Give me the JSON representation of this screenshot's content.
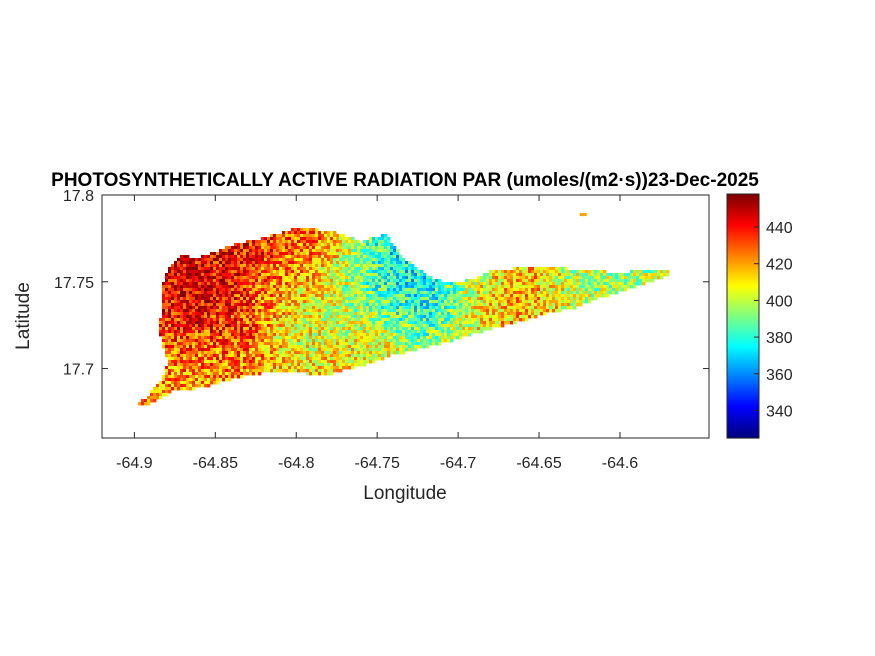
{
  "chart_data": {
    "type": "heatmap",
    "title": "PHOTOSYNTHETICALLY ACTIVE RADIATION PAR (umoles/(m2·s))23-Dec-2025",
    "xlabel": "Longitude",
    "ylabel": "Latitude",
    "xlim": [
      -64.92,
      -64.545
    ],
    "ylim": [
      17.66,
      17.8
    ],
    "xticks": [
      -64.9,
      -64.85,
      -64.8,
      -64.75,
      -64.7,
      -64.65,
      -64.6
    ],
    "xtick_labels": [
      "-64.9",
      "-64.85",
      "-64.8",
      "-64.75",
      "-64.7",
      "-64.65",
      "-64.6"
    ],
    "yticks": [
      17.7,
      17.75,
      17.8
    ],
    "ytick_labels": [
      "17.7",
      "17.75",
      "17.8"
    ],
    "colorbar": {
      "colormap": "jet",
      "clim": [
        325,
        458
      ],
      "ticks": [
        340,
        360,
        380,
        400,
        420,
        440
      ],
      "tick_labels": [
        "340",
        "360",
        "380",
        "400",
        "420",
        "440"
      ]
    },
    "grid": false,
    "island_outline": [
      [
        -64.9,
        17.679
      ],
      [
        -64.893,
        17.683
      ],
      [
        -64.884,
        17.693
      ],
      [
        -64.879,
        17.703
      ],
      [
        -64.882,
        17.712
      ],
      [
        -64.885,
        17.722
      ],
      [
        -64.883,
        17.735
      ],
      [
        -64.882,
        17.75
      ],
      [
        -64.879,
        17.758
      ],
      [
        -64.872,
        17.765
      ],
      [
        -64.86,
        17.764
      ],
      [
        -64.84,
        17.771
      ],
      [
        -64.818,
        17.776
      ],
      [
        -64.8,
        17.781
      ],
      [
        -64.785,
        17.78
      ],
      [
        -64.773,
        17.778
      ],
      [
        -64.76,
        17.773
      ],
      [
        -64.752,
        17.776
      ],
      [
        -64.745,
        17.777
      ],
      [
        -64.74,
        17.772
      ],
      [
        -64.735,
        17.765
      ],
      [
        -64.728,
        17.76
      ],
      [
        -64.72,
        17.754
      ],
      [
        -64.712,
        17.751
      ],
      [
        -64.702,
        17.749
      ],
      [
        -64.69,
        17.752
      ],
      [
        -64.678,
        17.757
      ],
      [
        -64.66,
        17.758
      ],
      [
        -64.64,
        17.758
      ],
      [
        -64.62,
        17.757
      ],
      [
        -64.6,
        17.755
      ],
      [
        -64.585,
        17.757
      ],
      [
        -64.572,
        17.757
      ],
      [
        -64.567,
        17.755
      ],
      [
        -64.575,
        17.752
      ],
      [
        -64.585,
        17.749
      ],
      [
        -64.6,
        17.744
      ],
      [
        -64.615,
        17.74
      ],
      [
        -64.628,
        17.735
      ],
      [
        -64.645,
        17.732
      ],
      [
        -64.662,
        17.727
      ],
      [
        -64.68,
        17.723
      ],
      [
        -64.7,
        17.717
      ],
      [
        -64.72,
        17.712
      ],
      [
        -64.74,
        17.708
      ],
      [
        -64.758,
        17.702
      ],
      [
        -64.768,
        17.7
      ],
      [
        -64.778,
        17.697
      ],
      [
        -64.792,
        17.697
      ],
      [
        -64.81,
        17.698
      ],
      [
        -64.825,
        17.697
      ],
      [
        -64.84,
        17.694
      ],
      [
        -64.855,
        17.69
      ],
      [
        -64.865,
        17.688
      ],
      [
        -64.875,
        17.688
      ],
      [
        -64.882,
        17.684
      ],
      [
        -64.89,
        17.68
      ]
    ],
    "islet": [
      -64.623,
      17.789
    ],
    "value_zones": [
      {
        "region": "west",
        "lon": -64.86,
        "lat": 17.735,
        "par": 448
      },
      {
        "region": "north-central",
        "lon": -64.8,
        "lat": 17.765,
        "par": 440
      },
      {
        "region": "central",
        "lon": -64.785,
        "lat": 17.74,
        "par": 398
      },
      {
        "region": "central-north",
        "lon": -64.75,
        "lat": 17.748,
        "par": 380
      },
      {
        "region": "christiansted-bay",
        "lon": -64.72,
        "lat": 17.752,
        "par": 362
      },
      {
        "region": "south-central-coast",
        "lon": -64.76,
        "lat": 17.71,
        "par": 415
      },
      {
        "region": "southwest",
        "lon": -64.86,
        "lat": 17.7,
        "par": 418
      },
      {
        "region": "east-center",
        "lon": -64.68,
        "lat": 17.74,
        "par": 420
      },
      {
        "region": "east-end",
        "lon": -64.6,
        "lat": 17.75,
        "par": 396
      }
    ],
    "base_par": 415
  }
}
